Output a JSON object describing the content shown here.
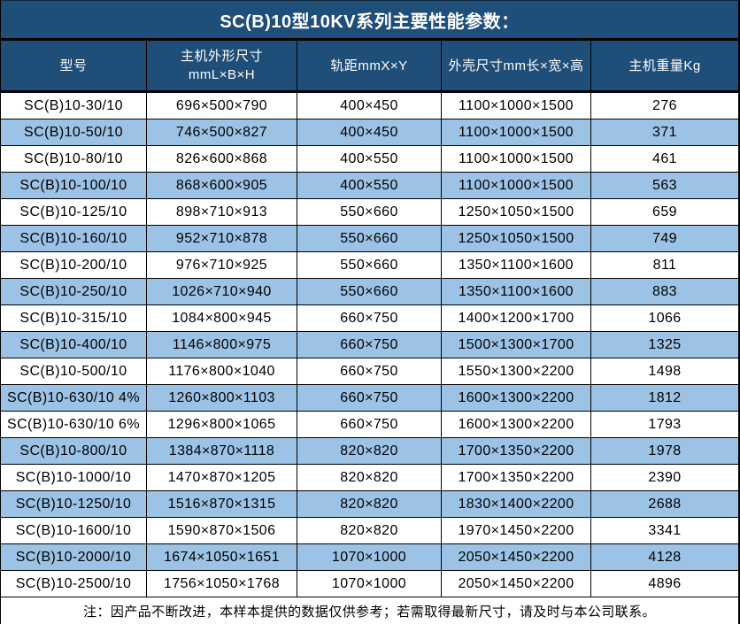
{
  "title": "SC(B)10型10KV系列主要性能参数：",
  "colors": {
    "header_bg": "#1F4E79",
    "row_alt_bg": "#9CC3E6",
    "row_bg": "#FFFFFF",
    "grid_line": "#000000",
    "header_text": "#FFFFFF",
    "body_text": "#000000"
  },
  "table": {
    "columns": [
      {
        "label": "型号"
      },
      {
        "label_line1": "主机外形尺寸",
        "label_line2": "mmL×B×H"
      },
      {
        "label": "轨距mmX×Y"
      },
      {
        "label": "外壳尺寸mm长×宽×高"
      },
      {
        "label": "主机重量Kg"
      }
    ],
    "rows": [
      [
        "SC(B)10-30/10",
        "696×500×790",
        "400×450",
        "1100×1000×1500",
        "276"
      ],
      [
        "SC(B)10-50/10",
        "746×500×827",
        "400×450",
        "1100×1000×1500",
        "371"
      ],
      [
        "SC(B)10-80/10",
        "826×600×868",
        "400×550",
        "1100×1000×1500",
        "461"
      ],
      [
        "SC(B)10-100/10",
        "868×600×905",
        "400×550",
        "1100×1000×1500",
        "563"
      ],
      [
        "SC(B)10-125/10",
        "898×710×913",
        "550×660",
        "1250×1050×1500",
        "659"
      ],
      [
        "SC(B)10-160/10",
        "952×710×878",
        "550×660",
        "1250×1050×1500",
        "749"
      ],
      [
        "SC(B)10-200/10",
        "976×710×925",
        "550×660",
        "1350×1100×1600",
        "811"
      ],
      [
        "SC(B)10-250/10",
        "1026×710×940",
        "550×660",
        "1350×1100×1600",
        "883"
      ],
      [
        "SC(B)10-315/10",
        "1084×800×945",
        "660×750",
        "1400×1200×1700",
        "1066"
      ],
      [
        "SC(B)10-400/10",
        "1146×800×975",
        "660×750",
        "1500×1300×1700",
        "1325"
      ],
      [
        "SC(B)10-500/10",
        "1176×800×1040",
        "660×750",
        "1550×1300×2200",
        "1498"
      ],
      [
        "SC(B)10-630/10 4%",
        "1260×800×1103",
        "660×750",
        "1600×1300×2200",
        "1812"
      ],
      [
        "SC(B)10-630/10 6%",
        "1296×800×1065",
        "660×750",
        "1600×1300×2200",
        "1793"
      ],
      [
        "SC(B)10-800/10",
        "1384×870×1118",
        "820×820",
        "1700×1350×2200",
        "1978"
      ],
      [
        "SC(B)10-1000/10",
        "1470×870×1205",
        "820×820",
        "1700×1350×2200",
        "2390"
      ],
      [
        "SC(B)10-1250/10",
        "1516×870×1315",
        "820×820",
        "1830×1400×2200",
        "2688"
      ],
      [
        "SC(B)10-1600/10",
        "1590×870×1506",
        "820×820",
        "1970×1450×2200",
        "3341"
      ],
      [
        "SC(B)10-2000/10",
        "1674×1050×1651",
        "1070×1000",
        "2050×1450×2200",
        "4128"
      ],
      [
        "SC(B)10-2500/10",
        "1756×1050×1768",
        "1070×1000",
        "2050×1450×2200",
        "4896"
      ]
    ]
  },
  "footnote": "注：因产品不断改进，本样本提供的数据仅供参考；若需取得最新尺寸，请及时与本公司联系。",
  "chart_data": {
    "type": "table",
    "title": "SC(B)10型10KV系列主要性能参数：",
    "columns": [
      "型号",
      "主机外形尺寸 mmL×B×H",
      "轨距mmX×Y",
      "外壳尺寸mm长×宽×高",
      "主机重量Kg"
    ],
    "rows": [
      [
        "SC(B)10-30/10",
        "696×500×790",
        "400×450",
        "1100×1000×1500",
        276
      ],
      [
        "SC(B)10-50/10",
        "746×500×827",
        "400×450",
        "1100×1000×1500",
        371
      ],
      [
        "SC(B)10-80/10",
        "826×600×868",
        "400×550",
        "1100×1000×1500",
        461
      ],
      [
        "SC(B)10-100/10",
        "868×600×905",
        "400×550",
        "1100×1000×1500",
        563
      ],
      [
        "SC(B)10-125/10",
        "898×710×913",
        "550×660",
        "1250×1050×1500",
        659
      ],
      [
        "SC(B)10-160/10",
        "952×710×878",
        "550×660",
        "1250×1050×1500",
        749
      ],
      [
        "SC(B)10-200/10",
        "976×710×925",
        "550×660",
        "1350×1100×1600",
        811
      ],
      [
        "SC(B)10-250/10",
        "1026×710×940",
        "550×660",
        "1350×1100×1600",
        883
      ],
      [
        "SC(B)10-315/10",
        "1084×800×945",
        "660×750",
        "1400×1200×1700",
        1066
      ],
      [
        "SC(B)10-400/10",
        "1146×800×975",
        "660×750",
        "1500×1300×1700",
        1325
      ],
      [
        "SC(B)10-500/10",
        "1176×800×1040",
        "660×750",
        "1550×1300×2200",
        1498
      ],
      [
        "SC(B)10-630/10 4%",
        "1260×800×1103",
        "660×750",
        "1600×1300×2200",
        1812
      ],
      [
        "SC(B)10-630/10 6%",
        "1296×800×1065",
        "660×750",
        "1600×1300×2200",
        1793
      ],
      [
        "SC(B)10-800/10",
        "1384×870×1118",
        "820×820",
        "1700×1350×2200",
        1978
      ],
      [
        "SC(B)10-1000/10",
        "1470×870×1205",
        "820×820",
        "1700×1350×2200",
        2390
      ],
      [
        "SC(B)10-1250/10",
        "1516×870×1315",
        "820×820",
        "1830×1400×2200",
        2688
      ],
      [
        "SC(B)10-1600/10",
        "1590×870×1506",
        "820×820",
        "1970×1450×2200",
        3341
      ],
      [
        "SC(B)10-2000/10",
        "1674×1050×1651",
        "1070×1000",
        "2050×1450×2200",
        4128
      ],
      [
        "SC(B)10-2500/10",
        "1756×1050×1768",
        "1070×1000",
        "2050×1450×2200",
        4896
      ]
    ],
    "footnote": "注：因产品不断改进，本样本提供的数据仅供参考；若需取得最新尺寸，请及时与本公司联系。"
  }
}
